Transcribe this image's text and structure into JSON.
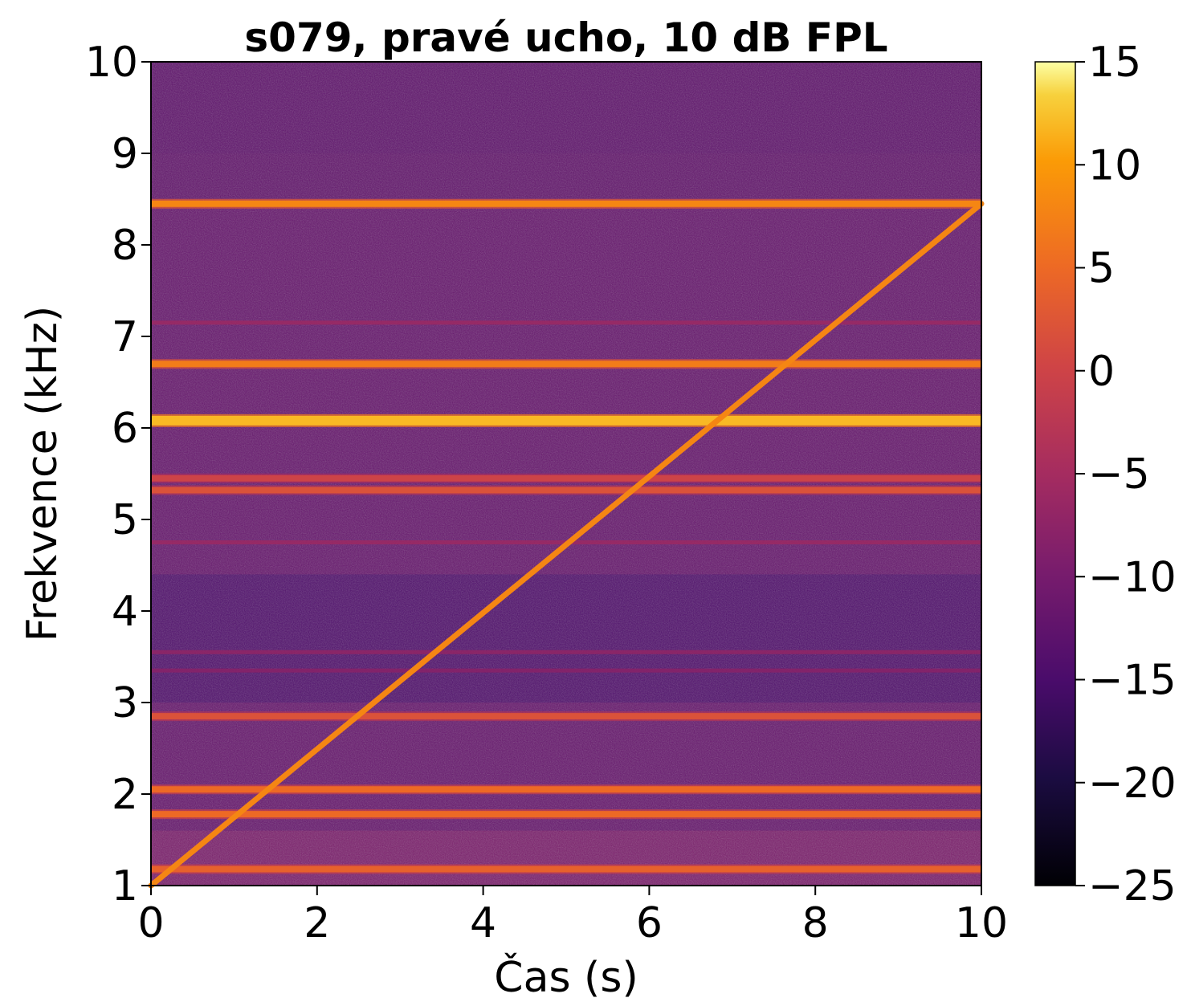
{
  "chart_data": {
    "type": "heatmap",
    "title": "s079, pravé ucho, 10 dB FPL",
    "xlabel": "Čas (s)",
    "ylabel": "Frekvence (kHz)",
    "xlim": [
      0,
      10
    ],
    "ylim": [
      1,
      10
    ],
    "xticks": [
      0,
      2,
      4,
      6,
      8,
      10
    ],
    "yticks": [
      1,
      2,
      3,
      4,
      5,
      6,
      7,
      8,
      9,
      10
    ],
    "colormap": "inferno",
    "colorbar": {
      "range": [
        -25,
        15
      ],
      "ticks": [
        15,
        10,
        5,
        0,
        -5,
        -10,
        -15,
        -20,
        -25
      ],
      "tick_labels": [
        "15",
        "10",
        "5",
        "0",
        "−5",
        "−10",
        "−15",
        "−20",
        "−25"
      ]
    },
    "background_level_db": -12,
    "sweep": {
      "t_start": 0,
      "f_start": 1.0,
      "t_end": 10,
      "f_end": 8.45,
      "level_db": 8
    },
    "horizontal_lines": [
      {
        "frequency": 8.45,
        "level_db": 8
      },
      {
        "frequency": 6.7,
        "level_db": 7
      },
      {
        "frequency": 6.08,
        "level_db": 12
      },
      {
        "frequency": 5.45,
        "level_db": 0
      },
      {
        "frequency": 5.32,
        "level_db": 2
      },
      {
        "frequency": 2.85,
        "level_db": 2
      },
      {
        "frequency": 2.05,
        "level_db": 5
      },
      {
        "frequency": 1.78,
        "level_db": 5
      },
      {
        "frequency": 1.18,
        "level_db": 4
      }
    ],
    "faint_lines": [
      {
        "frequency": 7.15,
        "level_db": -6
      },
      {
        "frequency": 4.75,
        "level_db": -6
      },
      {
        "frequency": 3.55,
        "level_db": -7
      },
      {
        "frequency": 3.35,
        "level_db": -8
      }
    ]
  }
}
